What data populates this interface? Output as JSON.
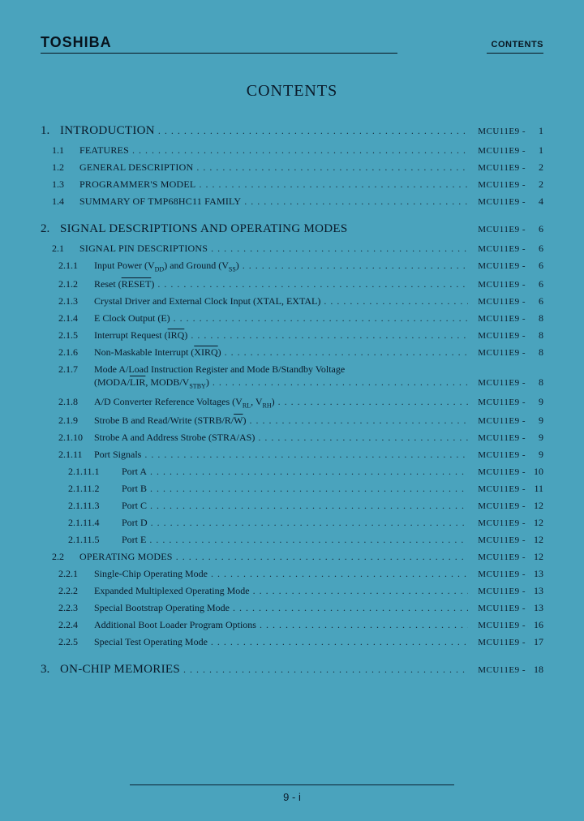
{
  "header": {
    "brand": "TOSHIBA",
    "right": "CONTENTS"
  },
  "title": "CONTENTS",
  "page_prefix": "MCU11E9 -",
  "footer": "9 - i",
  "toc": [
    {
      "lvl": 0,
      "num": "1.",
      "text": "INTRODUCTION",
      "page": "1"
    },
    {
      "lvl": 1,
      "num": "1.1",
      "text": "FEATURES",
      "page": "1"
    },
    {
      "lvl": 1,
      "num": "1.2",
      "text": "GENERAL DESCRIPTION",
      "page": "2"
    },
    {
      "lvl": 1,
      "num": "1.3",
      "text": "PROGRAMMER'S MODEL",
      "page": "2"
    },
    {
      "lvl": 1,
      "num": "1.4",
      "text": "SUMMARY OF TMP68HC11 FAMILY",
      "page": "4"
    },
    {
      "lvl": 0,
      "num": "2.",
      "text": "SIGNAL DESCRIPTIONS AND OPERATING MODES",
      "page": "6",
      "noleader": true
    },
    {
      "lvl": 1,
      "num": "2.1",
      "text": "SIGNAL PIN DESCRIPTIONS",
      "page": "6"
    },
    {
      "lvl": 2,
      "num": "2.1.1",
      "html": "Input Power (V<span class='sub'>DD</span>) and Ground (V<span class='sub'>SS</span>)",
      "page": "6"
    },
    {
      "lvl": 2,
      "num": "2.1.2",
      "html": "Reset (<span class='overline'>RESET</span>)",
      "page": "6"
    },
    {
      "lvl": 2,
      "num": "2.1.3",
      "text": "Crystal Driver and External Clock Input (XTAL, EXTAL)",
      "page": "6"
    },
    {
      "lvl": 2,
      "num": "2.1.4",
      "text": "E Clock Output (E)",
      "page": "8"
    },
    {
      "lvl": 2,
      "num": "2.1.5",
      "html": "Interrupt Request (<span class='overline'>IRQ</span>)",
      "page": "8"
    },
    {
      "lvl": 2,
      "num": "2.1.6",
      "html": "Non-Maskable Interrupt (<span class='overline'>XIRQ</span>)",
      "page": "8"
    },
    {
      "lvl": 2,
      "num": "2.1.7",
      "text": "Mode A/Load Instruction Register and Mode B/Standby Voltage",
      "nowrap_page": true
    },
    {
      "lvl": "wrap",
      "html": "(MODA/<span class='overline'>LIR</span>, MODB/V<span class='sub'>STBY</span>)",
      "page": "8"
    },
    {
      "lvl": 2,
      "num": "2.1.8",
      "html": "A/D Converter Reference Voltages (V<span class='sub'>RL</span>, V<span class='sub'>RH</span>)",
      "page": "9"
    },
    {
      "lvl": 2,
      "num": "2.1.9",
      "html": "Strobe B and Read/Write (STRB/R/<span class='overline'>W</span>)",
      "page": "9"
    },
    {
      "lvl": 2,
      "num": "2.1.10",
      "text": "Strobe A and Address Strobe (STRA/AS)",
      "page": "9"
    },
    {
      "lvl": 2,
      "num": "2.1.11",
      "text": "Port Signals",
      "page": "9"
    },
    {
      "lvl": 3,
      "num": "2.1.11.1",
      "text": "Port A",
      "page": "10"
    },
    {
      "lvl": 3,
      "num": "2.1.11.2",
      "text": "Port B",
      "page": "11"
    },
    {
      "lvl": 3,
      "num": "2.1.11.3",
      "text": "Port C",
      "page": "12"
    },
    {
      "lvl": 3,
      "num": "2.1.11.4",
      "text": "Port D",
      "page": "12"
    },
    {
      "lvl": 3,
      "num": "2.1.11.5",
      "text": "Port E",
      "page": "12"
    },
    {
      "lvl": 1,
      "num": "2.2",
      "text": "OPERATING MODES",
      "page": "12"
    },
    {
      "lvl": 2,
      "num": "2.2.1",
      "text": "Single-Chip Operating Mode",
      "page": "13"
    },
    {
      "lvl": 2,
      "num": "2.2.2",
      "text": "Expanded Multiplexed Operating Mode",
      "page": "13"
    },
    {
      "lvl": 2,
      "num": "2.2.3",
      "text": "Special Bootstrap Operating Mode",
      "page": "13"
    },
    {
      "lvl": 2,
      "num": "2.2.4",
      "text": "Additional Boot Loader Program Options",
      "page": "16"
    },
    {
      "lvl": 2,
      "num": "2.2.5",
      "text": "Special Test Operating Mode",
      "page": "17"
    },
    {
      "lvl": 0,
      "num": "3.",
      "text": "ON-CHIP MEMORIES",
      "page": "18"
    }
  ]
}
